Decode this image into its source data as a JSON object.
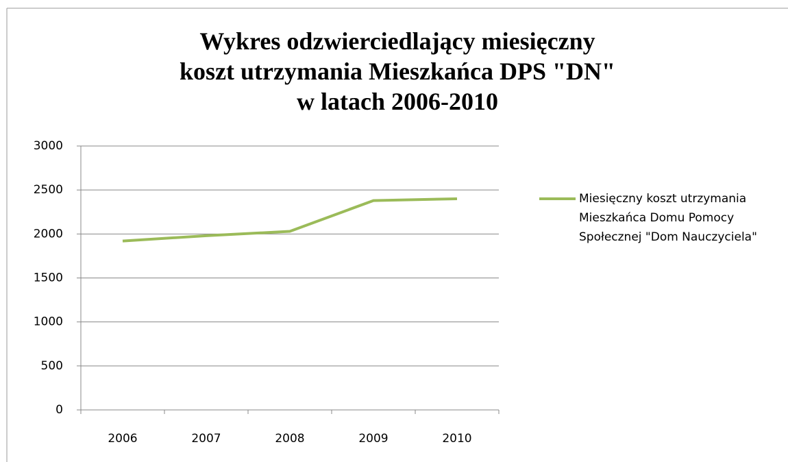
{
  "chart_data": {
    "type": "line",
    "title": "Wykres odzwierciedlający miesięczny\nkoszt utrzymania Mieszkańca DPS \"DN\"\nw latach 2006-2010",
    "categories": [
      "2006",
      "2007",
      "2008",
      "2009",
      "2010"
    ],
    "series": [
      {
        "name": "Miesięczny koszt utrzymania Mieszkańca Domu Pomocy Społecznej \"Dom Nauczyciela\"",
        "color": "#9bbb59",
        "values": [
          1920,
          1980,
          2030,
          2380,
          2400
        ]
      }
    ],
    "ylim": [
      0,
      3000
    ],
    "yticks": [
      0,
      500,
      1000,
      1500,
      2000,
      2500,
      3000
    ],
    "grid": true,
    "legend": "right"
  }
}
